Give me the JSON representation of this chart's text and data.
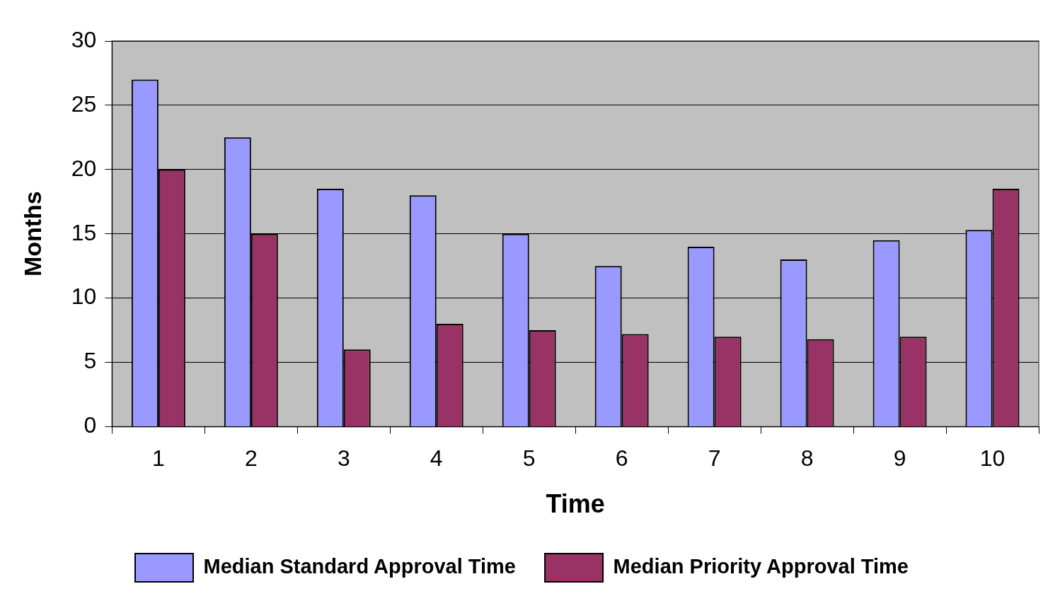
{
  "chart_data": {
    "type": "bar",
    "xlabel": "Time",
    "ylabel": "Months",
    "categories": [
      "1",
      "2",
      "3",
      "4",
      "5",
      "6",
      "7",
      "8",
      "9",
      "10"
    ],
    "series": [
      {
        "name": "Median Standard Approval Time",
        "color": "#9999ff",
        "values": [
          27,
          22.5,
          18.5,
          18,
          15,
          12.5,
          14,
          13,
          14.5,
          15.3
        ]
      },
      {
        "name": "Median Priority Approval Time",
        "color": "#993366",
        "values": [
          20,
          15,
          6,
          8,
          7.5,
          7.2,
          7,
          6.8,
          7,
          18.5
        ]
      }
    ],
    "ylim": [
      0,
      30
    ],
    "yticks": [
      0,
      5,
      10,
      15,
      20,
      25,
      30
    ],
    "grid": "y",
    "legend": "bottom"
  }
}
